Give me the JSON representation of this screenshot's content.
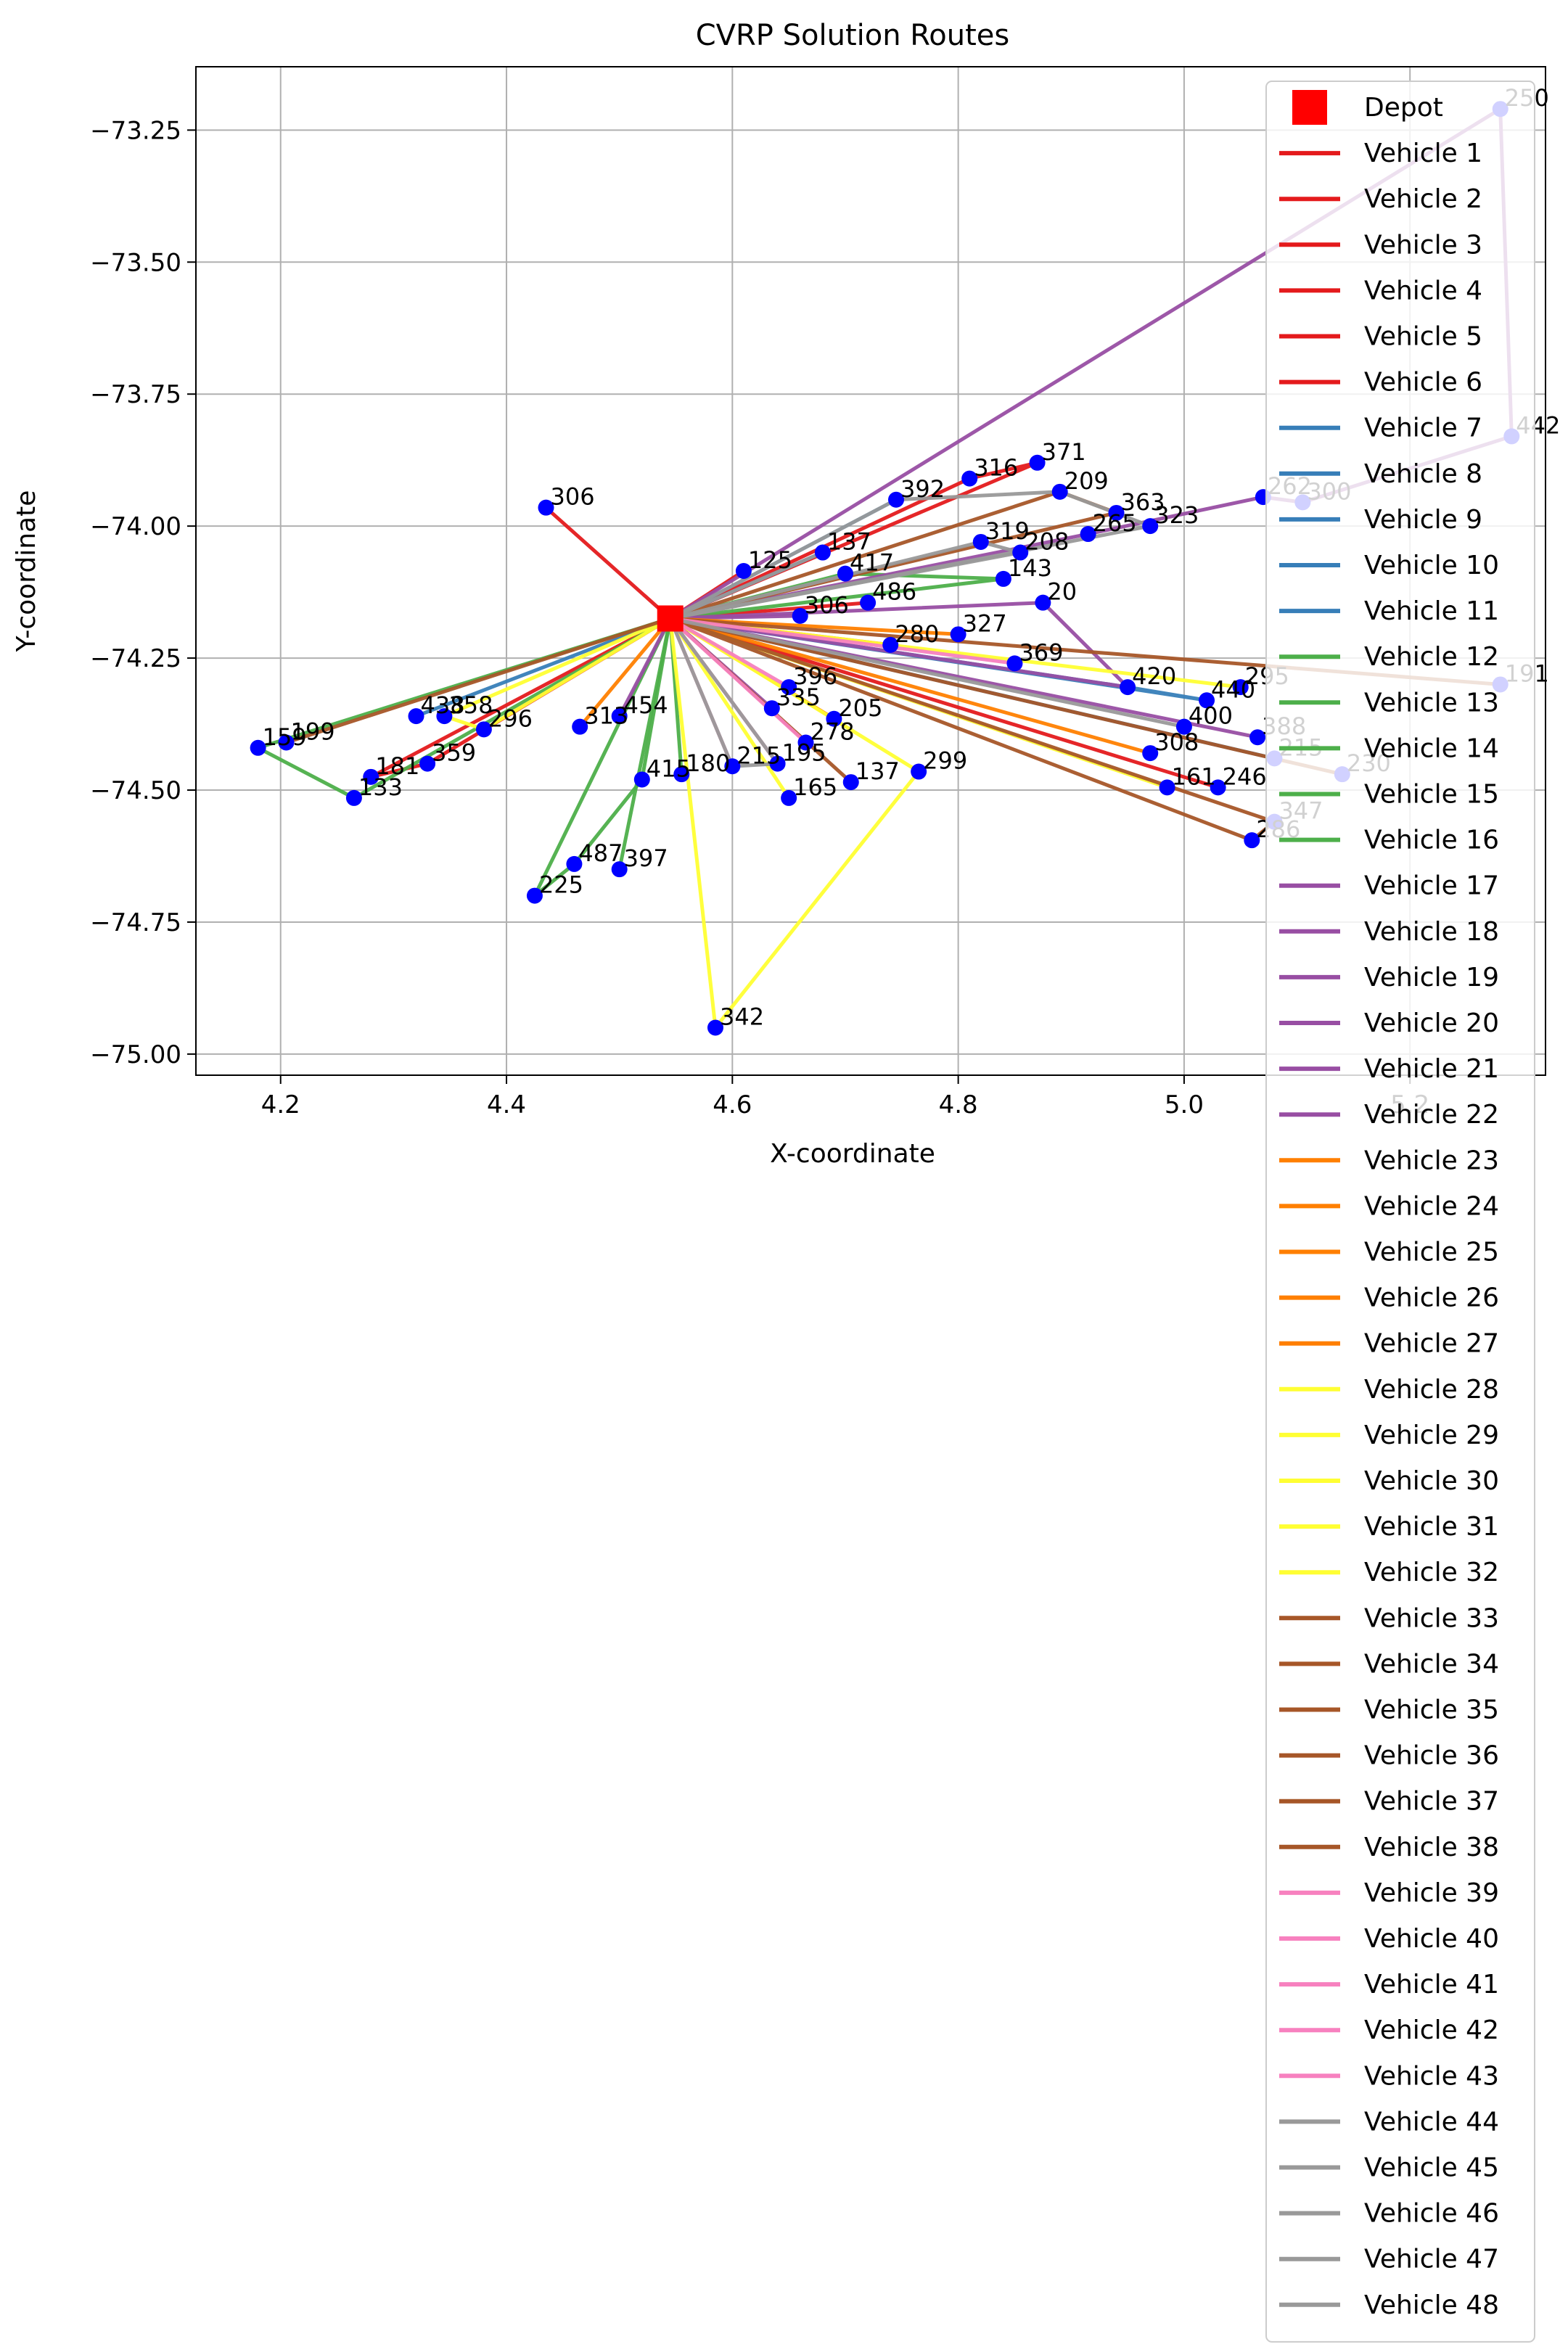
{
  "chart_data": {
    "type": "scatter",
    "title": "CVRP Solution Routes",
    "xlabel": "X-coordinate",
    "ylabel": "Y-coordinate",
    "xlim": [
      4.125,
      5.32
    ],
    "ylim": [
      -75.04,
      -73.13
    ],
    "x_ticks": [
      4.2,
      4.4,
      4.6,
      4.8,
      5.0,
      5.2
    ],
    "x_tick_labels": [
      "4.2",
      "4.4",
      "4.6",
      "4.8",
      "5.0",
      "5.2"
    ],
    "y_ticks": [
      -73.25,
      -73.5,
      -73.75,
      -74.0,
      -74.25,
      -74.5,
      -74.75,
      -75.0
    ],
    "y_tick_labels": [
      "−73.25",
      "−73.50",
      "−73.75",
      "−74.00",
      "−74.25",
      "−74.50",
      "−74.75",
      "−75.00"
    ],
    "grid": true,
    "legend_position": "upper-right",
    "depot": {
      "label": "Depot",
      "x": 4.545,
      "y": -74.175,
      "color": "#ff0000"
    },
    "point_color": "#0000ff",
    "customers": [
      {
        "id": "306",
        "x": 4.435,
        "y": -73.965
      },
      {
        "id": "250",
        "x": 5.28,
        "y": -73.21
      },
      {
        "id": "442",
        "x": 5.29,
        "y": -73.83
      },
      {
        "id": "262",
        "x": 5.07,
        "y": -73.945
      },
      {
        "id": "300",
        "x": 5.105,
        "y": -73.955
      },
      {
        "id": "363",
        "x": 4.94,
        "y": -73.975
      },
      {
        "id": "323",
        "x": 4.97,
        "y": -74.0
      },
      {
        "id": "265",
        "x": 4.915,
        "y": -74.015
      },
      {
        "id": "371",
        "x": 4.87,
        "y": -73.88
      },
      {
        "id": "316",
        "x": 4.81,
        "y": -73.91
      },
      {
        "id": "209",
        "x": 4.89,
        "y": -73.935
      },
      {
        "id": "392",
        "x": 4.745,
        "y": -73.95
      },
      {
        "id": "319",
        "x": 4.82,
        "y": -74.03
      },
      {
        "id": "208",
        "x": 4.855,
        "y": -74.05
      },
      {
        "id": "143",
        "x": 4.84,
        "y": -74.1
      },
      {
        "id": "20",
        "x": 4.875,
        "y": -74.145
      },
      {
        "id": "327",
        "x": 4.8,
        "y": -74.205
      },
      {
        "id": "369",
        "x": 4.85,
        "y": -74.26
      },
      {
        "id": "280",
        "x": 4.74,
        "y": -74.225
      },
      {
        "id": "417",
        "x": 4.7,
        "y": -74.09
      },
      {
        "id": "486",
        "x": 4.72,
        "y": -74.145
      },
      {
        "id": "306b",
        "x": 4.66,
        "y": -74.17
      },
      {
        "id": "125",
        "x": 4.61,
        "y": -74.085
      },
      {
        "id": "137",
        "x": 4.68,
        "y": -74.05
      },
      {
        "id": "191",
        "x": 5.28,
        "y": -74.3
      },
      {
        "id": "420",
        "x": 4.95,
        "y": -74.305
      },
      {
        "id": "295",
        "x": 5.05,
        "y": -74.305
      },
      {
        "id": "440",
        "x": 5.02,
        "y": -74.33
      },
      {
        "id": "400",
        "x": 5.0,
        "y": -74.38
      },
      {
        "id": "388",
        "x": 5.065,
        "y": -74.4
      },
      {
        "id": "308",
        "x": 4.97,
        "y": -74.43
      },
      {
        "id": "161",
        "x": 4.985,
        "y": -74.495
      },
      {
        "id": "246",
        "x": 5.03,
        "y": -74.495
      },
      {
        "id": "215",
        "x": 5.08,
        "y": -74.44
      },
      {
        "id": "230",
        "x": 5.14,
        "y": -74.47
      },
      {
        "id": "347",
        "x": 5.08,
        "y": -74.56
      },
      {
        "id": "286",
        "x": 5.06,
        "y": -74.595
      },
      {
        "id": "396",
        "x": 4.65,
        "y": -74.305
      },
      {
        "id": "335",
        "x": 4.635,
        "y": -74.345
      },
      {
        "id": "205",
        "x": 4.69,
        "y": -74.365
      },
      {
        "id": "278",
        "x": 4.665,
        "y": -74.41
      },
      {
        "id": "195",
        "x": 4.64,
        "y": -74.45
      },
      {
        "id": "215b",
        "x": 4.6,
        "y": -74.455
      },
      {
        "id": "165",
        "x": 4.65,
        "y": -74.515
      },
      {
        "id": "137b",
        "x": 4.705,
        "y": -74.485
      },
      {
        "id": "299",
        "x": 4.765,
        "y": -74.465
      },
      {
        "id": "342",
        "x": 4.585,
        "y": -74.95
      },
      {
        "id": "415",
        "x": 4.52,
        "y": -74.48
      },
      {
        "id": "180",
        "x": 4.555,
        "y": -74.47
      },
      {
        "id": "487",
        "x": 4.46,
        "y": -74.64
      },
      {
        "id": "397",
        "x": 4.5,
        "y": -74.65
      },
      {
        "id": "225",
        "x": 4.425,
        "y": -74.7
      },
      {
        "id": "313",
        "x": 4.465,
        "y": -74.38
      },
      {
        "id": "454",
        "x": 4.5,
        "y": -74.36
      },
      {
        "id": "296",
        "x": 4.38,
        "y": -74.385
      },
      {
        "id": "438",
        "x": 4.32,
        "y": -74.36
      },
      {
        "id": "358",
        "x": 4.345,
        "y": -74.36
      },
      {
        "id": "359",
        "x": 4.33,
        "y": -74.45
      },
      {
        "id": "181",
        "x": 4.28,
        "y": -74.475
      },
      {
        "id": "133",
        "x": 4.265,
        "y": -74.515
      },
      {
        "id": "159",
        "x": 4.18,
        "y": -74.42
      },
      {
        "id": "199",
        "x": 4.205,
        "y": -74.41
      }
    ],
    "routes": [
      {
        "name": "Vehicle 1",
        "color": "#e41a1c",
        "stops": [
          "306"
        ]
      },
      {
        "name": "Vehicle 2",
        "color": "#e41a1c",
        "stops": [
          "371",
          "316"
        ]
      },
      {
        "name": "Vehicle 3",
        "color": "#e41a1c",
        "stops": [
          "125"
        ]
      },
      {
        "name": "Vehicle 4",
        "color": "#e41a1c",
        "stops": [
          "359",
          "181"
        ]
      },
      {
        "name": "Vehicle 5",
        "color": "#e41a1c",
        "stops": [
          "486"
        ]
      },
      {
        "name": "Vehicle 6",
        "color": "#e41a1c",
        "stops": [
          "246"
        ]
      },
      {
        "name": "Vehicle 7",
        "color": "#377eb8",
        "stops": [
          "392"
        ]
      },
      {
        "name": "Vehicle 8",
        "color": "#377eb8",
        "stops": [
          "137"
        ]
      },
      {
        "name": "Vehicle 9",
        "color": "#377eb8",
        "stops": [
          "420",
          "440"
        ]
      },
      {
        "name": "Vehicle 10",
        "color": "#377eb8",
        "stops": [
          "215"
        ]
      },
      {
        "name": "Vehicle 11",
        "color": "#377eb8",
        "stops": [
          "438"
        ]
      },
      {
        "name": "Vehicle 12",
        "color": "#4daf4a",
        "stops": [
          "417",
          "143"
        ]
      },
      {
        "name": "Vehicle 13",
        "color": "#4daf4a",
        "stops": [
          "415",
          "487",
          "225"
        ]
      },
      {
        "name": "Vehicle 14",
        "color": "#4daf4a",
        "stops": [
          "180"
        ]
      },
      {
        "name": "Vehicle 15",
        "color": "#4daf4a",
        "stops": [
          "397"
        ]
      },
      {
        "name": "Vehicle 16",
        "color": "#4daf4a",
        "stops": [
          "133",
          "159"
        ]
      },
      {
        "name": "Vehicle 17",
        "color": "#984ea3",
        "stops": [
          "265",
          "262",
          "300",
          "442",
          "250"
        ]
      },
      {
        "name": "Vehicle 18",
        "color": "#984ea3",
        "stops": [
          "20",
          "420"
        ]
      },
      {
        "name": "Vehicle 19",
        "color": "#984ea3",
        "stops": [
          "306b"
        ]
      },
      {
        "name": "Vehicle 20",
        "color": "#984ea3",
        "stops": [
          "388"
        ]
      },
      {
        "name": "Vehicle 21",
        "color": "#984ea3",
        "stops": [
          "454"
        ]
      },
      {
        "name": "Vehicle 22",
        "color": "#984ea3",
        "stops": [
          "335"
        ]
      },
      {
        "name": "Vehicle 23",
        "color": "#ff7f00",
        "stops": [
          "280"
        ]
      },
      {
        "name": "Vehicle 24",
        "color": "#ff7f00",
        "stops": [
          "327"
        ]
      },
      {
        "name": "Vehicle 25",
        "color": "#ff7f00",
        "stops": [
          "308"
        ]
      },
      {
        "name": "Vehicle 26",
        "color": "#ff7f00",
        "stops": [
          "205"
        ]
      },
      {
        "name": "Vehicle 27",
        "color": "#ff7f00",
        "stops": [
          "313"
        ]
      },
      {
        "name": "Vehicle 28",
        "color": "#ffff33",
        "stops": [
          "299",
          "342"
        ]
      },
      {
        "name": "Vehicle 29",
        "color": "#ffff33",
        "stops": [
          "295"
        ]
      },
      {
        "name": "Vehicle 30",
        "color": "#ffff33",
        "stops": [
          "161"
        ]
      },
      {
        "name": "Vehicle 31",
        "color": "#ffff33",
        "stops": [
          "358",
          "296"
        ]
      },
      {
        "name": "Vehicle 32",
        "color": "#ffff33",
        "stops": [
          "165"
        ]
      },
      {
        "name": "Vehicle 33",
        "color": "#a65628",
        "stops": [
          "209",
          "363"
        ]
      },
      {
        "name": "Vehicle 34",
        "color": "#a65628",
        "stops": [
          "191"
        ]
      },
      {
        "name": "Vehicle 35",
        "color": "#a65628",
        "stops": [
          "347",
          "286"
        ]
      },
      {
        "name": "Vehicle 36",
        "color": "#a65628",
        "stops": [
          "230"
        ]
      },
      {
        "name": "Vehicle 37",
        "color": "#a65628",
        "stops": [
          "137b"
        ]
      },
      {
        "name": "Vehicle 38",
        "color": "#a65628",
        "stops": [
          "199"
        ]
      },
      {
        "name": "Vehicle 39",
        "color": "#f781bf",
        "stops": [
          "396"
        ]
      },
      {
        "name": "Vehicle 40",
        "color": "#f781bf",
        "stops": [
          "278"
        ]
      },
      {
        "name": "Vehicle 41",
        "color": "#f781bf",
        "stops": [
          "195"
        ]
      },
      {
        "name": "Vehicle 42",
        "color": "#f781bf",
        "stops": [
          "369"
        ]
      },
      {
        "name": "Vehicle 43",
        "color": "#f781bf",
        "stops": [
          "215b"
        ]
      },
      {
        "name": "Vehicle 44",
        "color": "#999999",
        "stops": [
          "319",
          "208"
        ]
      },
      {
        "name": "Vehicle 45",
        "color": "#999999",
        "stops": [
          "392",
          "209",
          "323"
        ]
      },
      {
        "name": "Vehicle 46",
        "color": "#999999",
        "stops": [
          "400"
        ]
      },
      {
        "name": "Vehicle 47",
        "color": "#999999",
        "stops": [
          "215b",
          "195"
        ]
      },
      {
        "name": "Vehicle 48",
        "color": "#999999",
        "stops": [
          "137"
        ]
      }
    ]
  }
}
